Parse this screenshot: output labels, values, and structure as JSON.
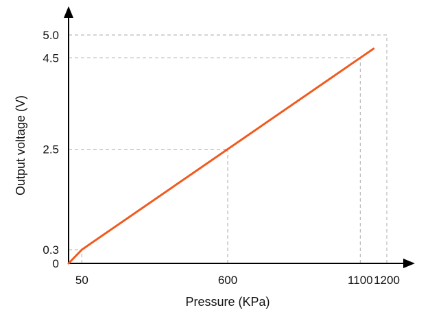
{
  "chart_data": {
    "type": "line",
    "title": "",
    "xlabel": "Pressure (KPa)",
    "ylabel": "Output voltage (V)",
    "xlim": [
      0,
      1200
    ],
    "ylim": [
      0,
      5.0
    ],
    "x_ticks": [
      {
        "value": 50,
        "label": "50"
      },
      {
        "value": 600,
        "label": "600"
      },
      {
        "value": 1100,
        "label": "1100"
      },
      {
        "value": 1200,
        "label": "1200"
      }
    ],
    "y_ticks": [
      {
        "value": 0,
        "label": "0"
      },
      {
        "value": 0.3,
        "label": "0.3"
      },
      {
        "value": 2.5,
        "label": "2.5"
      },
      {
        "value": 4.5,
        "label": "4.5"
      },
      {
        "value": 5.0,
        "label": "5.0"
      }
    ],
    "grid": "dashed reference lines at marked ticks",
    "legend": "none",
    "series": [
      {
        "color": "#f05a1e",
        "x": [
          0,
          50,
          600,
          1100,
          1150
        ],
        "y": [
          0,
          0.3,
          2.5,
          4.5,
          4.7
        ]
      }
    ]
  }
}
